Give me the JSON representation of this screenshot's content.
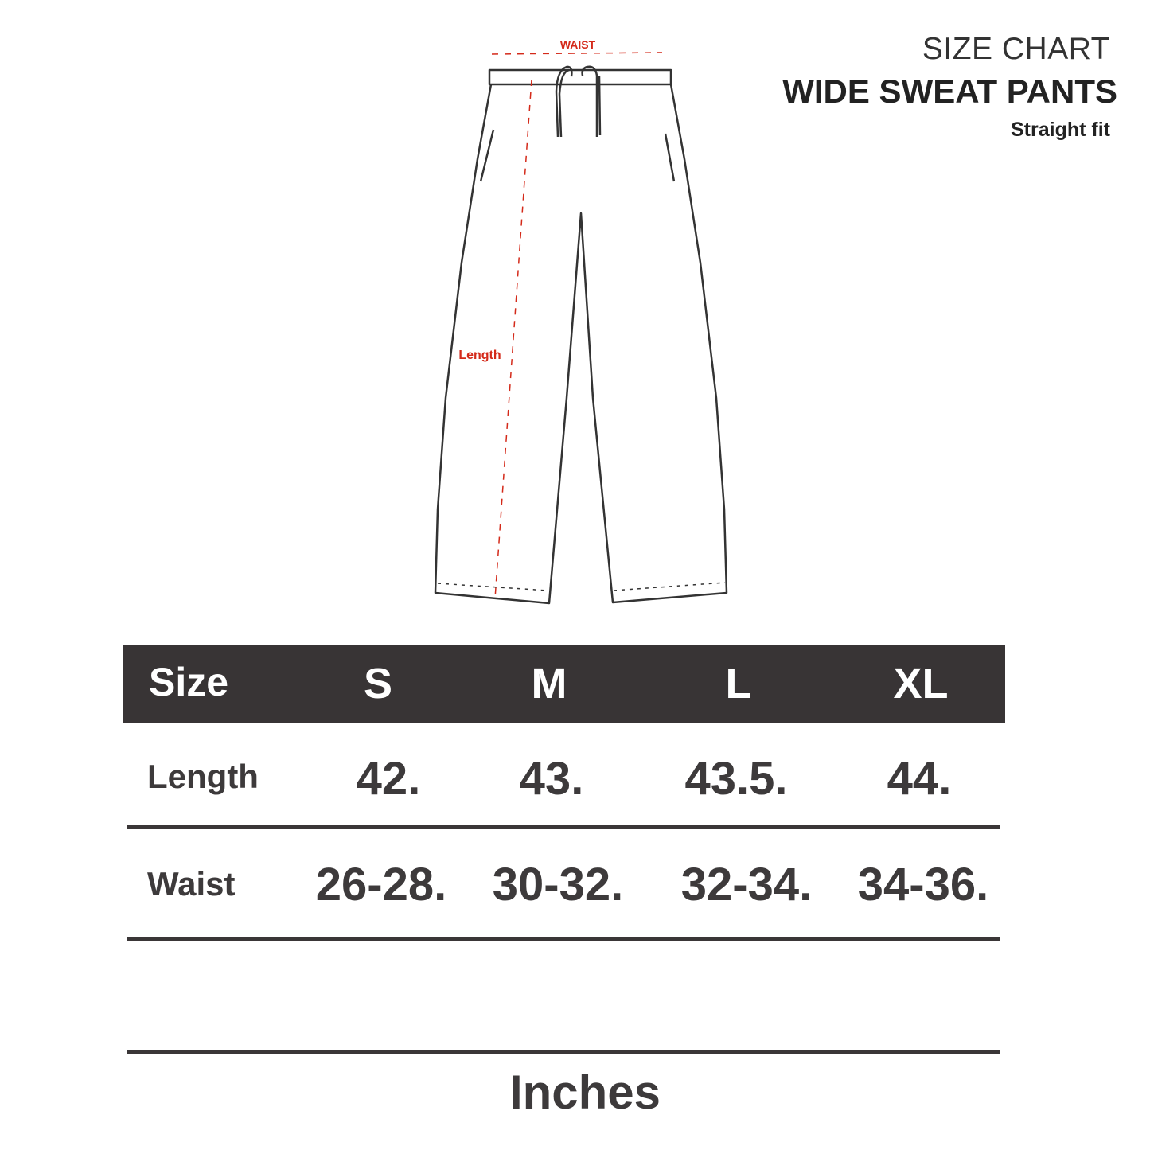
{
  "title": {
    "line1": "SIZE CHART",
    "line2": "WIDE SWEAT PANTS",
    "line3": "Straight fit"
  },
  "diagram": {
    "waist_label": "WAIST",
    "length_label": "Length",
    "measure_color": "#d42a1a"
  },
  "table": {
    "header_label": "Size",
    "sizes": [
      "S",
      "M",
      "L",
      "XL"
    ],
    "rows": [
      {
        "label": "Length",
        "values": [
          "42.",
          "43.",
          "43.5.",
          "44."
        ]
      },
      {
        "label": "Waist",
        "values": [
          "26-28.",
          "30-32.",
          "32-34.",
          "34-36."
        ]
      }
    ],
    "header_color": "#383435"
  },
  "units": "Inches"
}
